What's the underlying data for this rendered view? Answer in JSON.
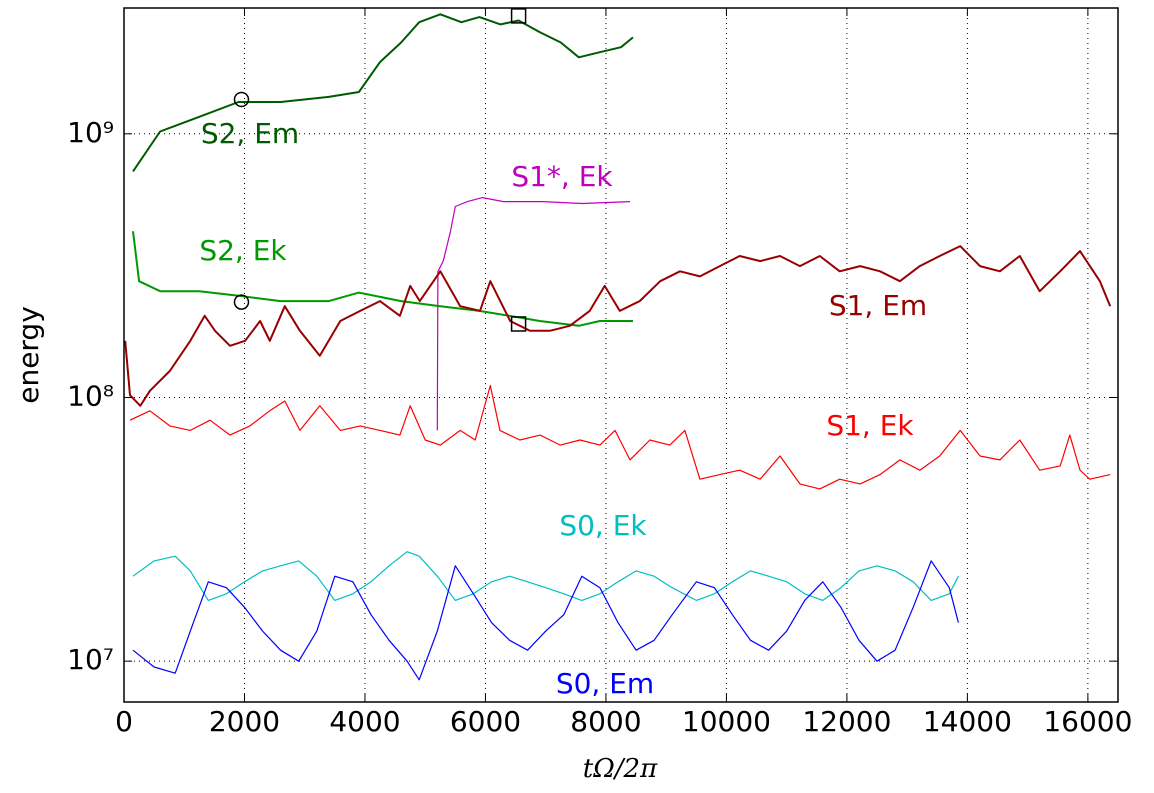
{
  "chart_data": {
    "type": "line",
    "xlabel": "tΩ/2π",
    "ylabel": "energy",
    "log_y": true,
    "grid": true,
    "xlim": [
      0,
      16500
    ],
    "ylim": [
      7000000,
      3000000000
    ],
    "xticks": [
      0,
      2000,
      4000,
      6000,
      8000,
      10000,
      12000,
      14000,
      16000
    ],
    "yticks": [
      {
        "value": 10000000,
        "label": "10⁷"
      },
      {
        "value": 100000000,
        "label": "10⁸"
      },
      {
        "value": 1000000000,
        "label": "10⁹"
      }
    ],
    "series": [
      {
        "name": "S2, Em",
        "color": "#005a00",
        "x": [
          150,
          600,
          1250,
          1900,
          2600,
          3400,
          3900,
          4250,
          4600,
          4900,
          5250,
          5600,
          5900,
          6250,
          6550,
          6900,
          7250,
          7550,
          7900,
          8250,
          8450
        ],
        "values": [
          720000000,
          1020000000,
          1160000000,
          1320000000,
          1320000000,
          1380000000,
          1440000000,
          1870000000,
          2220000000,
          2650000000,
          2840000000,
          2650000000,
          2770000000,
          2600000000,
          2690000000,
          2430000000,
          2220000000,
          1950000000,
          2040000000,
          2130000000,
          2320000000
        ]
      },
      {
        "name": "S1*, Ek",
        "color": "#bf00bf",
        "x": [
          5200,
          5210,
          5300,
          5420,
          5500,
          5700,
          5950,
          6300,
          6950,
          7600,
          8400
        ],
        "values": [
          75000000,
          300000000,
          330000000,
          427000000,
          530000000,
          553000000,
          573000000,
          553000000,
          553000000,
          544000000,
          553000000
        ]
      },
      {
        "name": "S2, Ek",
        "color": "#009900",
        "x": [
          150,
          250,
          600,
          1250,
          1900,
          2600,
          3400,
          3900,
          4600,
          5250,
          5900,
          6400,
          6900,
          7550,
          7900,
          8450
        ],
        "values": [
          427000000,
          276000000,
          253000000,
          253000000,
          243000000,
          232000000,
          232000000,
          250000000,
          232000000,
          222000000,
          213000000,
          204000000,
          195000000,
          187000000,
          195000000,
          195000000
        ]
      },
      {
        "name": "S1, Em",
        "color": "#990000",
        "x": [
          20,
          100,
          270,
          430,
          760,
          1100,
          1340,
          1510,
          1760,
          2010,
          2260,
          2420,
          2670,
          2920,
          3250,
          3590,
          3920,
          4250,
          4580,
          4750,
          4910,
          5250,
          5580,
          5910,
          6080,
          6410,
          6740,
          7070,
          7400,
          7730,
          7980,
          8230,
          8560,
          8900,
          9230,
          9560,
          9890,
          10220,
          10560,
          10890,
          11220,
          11550,
          11880,
          12220,
          12550,
          12880,
          13210,
          13540,
          13880,
          14210,
          14540,
          14870,
          15200,
          15540,
          15870,
          16200,
          16370
        ],
        "values": [
          164000000,
          102000000,
          93000000,
          106000000,
          126000000,
          164000000,
          204000000,
          179000000,
          157000000,
          164000000,
          195000000,
          164000000,
          222000000,
          179000000,
          144000000,
          195000000,
          213000000,
          232000000,
          204000000,
          265000000,
          232000000,
          301000000,
          222000000,
          213000000,
          276000000,
          195000000,
          179000000,
          179000000,
          187000000,
          213000000,
          265000000,
          213000000,
          232000000,
          276000000,
          301000000,
          288000000,
          315000000,
          344000000,
          329000000,
          344000000,
          315000000,
          344000000,
          301000000,
          315000000,
          301000000,
          276000000,
          315000000,
          344000000,
          375000000,
          315000000,
          301000000,
          344000000,
          253000000,
          301000000,
          359000000,
          276000000,
          222000000
        ]
      },
      {
        "name": "S1, Ek",
        "color": "#ff0000",
        "x": [
          100,
          430,
          760,
          1100,
          1430,
          1760,
          2090,
          2420,
          2670,
          2920,
          3250,
          3590,
          3920,
          4250,
          4580,
          4750,
          5000,
          5250,
          5580,
          5830,
          6080,
          6240,
          6570,
          6910,
          7240,
          7570,
          7900,
          8150,
          8400,
          8730,
          9060,
          9310,
          9560,
          9890,
          10220,
          10560,
          10890,
          11220,
          11550,
          11880,
          12220,
          12550,
          12880,
          13210,
          13540,
          13880,
          14210,
          14540,
          14870,
          15200,
          15540,
          15700,
          15870,
          16030,
          16370
        ],
        "values": [
          82000000,
          89000000,
          78000000,
          75000000,
          82000000,
          72000000,
          78000000,
          89000000,
          97000000,
          75000000,
          93000000,
          75000000,
          78000000,
          75000000,
          72000000,
          93000000,
          69000000,
          66000000,
          75000000,
          69000000,
          111000000,
          75000000,
          69000000,
          72000000,
          66000000,
          69000000,
          66000000,
          75000000,
          58000000,
          69000000,
          66000000,
          75000000,
          49000000,
          51000000,
          53000000,
          49000000,
          60000000,
          47000000,
          45000000,
          49000000,
          47000000,
          51000000,
          58000000,
          53000000,
          60000000,
          75000000,
          60000000,
          58000000,
          69000000,
          53000000,
          55000000,
          72000000,
          53000000,
          49000000,
          51000000
        ]
      },
      {
        "name": "S0, Ek",
        "color": "#00bfbf",
        "x": [
          150,
          500,
          850,
          1100,
          1400,
          1700,
          2000,
          2300,
          2600,
          2900,
          3200,
          3500,
          3800,
          4100,
          4400,
          4700,
          4900,
          5200,
          5500,
          5800,
          6100,
          6400,
          6700,
          7000,
          7300,
          7600,
          7900,
          8200,
          8500,
          8800,
          9100,
          9500,
          9800,
          10100,
          10400,
          10700,
          11000,
          11300,
          11600,
          11900,
          12200,
          12500,
          12800,
          13100,
          13400,
          13700,
          13850
        ],
        "values": [
          21000000,
          24000000,
          25000000,
          22000000,
          17000000,
          18000000,
          20000000,
          22000000,
          23000000,
          24000000,
          21000000,
          17000000,
          18000000,
          20000000,
          23000000,
          26000000,
          25000000,
          21000000,
          17000000,
          18000000,
          20000000,
          21000000,
          20000000,
          19000000,
          18000000,
          17000000,
          18000000,
          20000000,
          22000000,
          21000000,
          19000000,
          17000000,
          18000000,
          20000000,
          22000000,
          21000000,
          20000000,
          18000000,
          17000000,
          19000000,
          22000000,
          23000000,
          22000000,
          20000000,
          17000000,
          18000000,
          21000000
        ]
      },
      {
        "name": "S0, Em",
        "color": "#0000ff",
        "x": [
          150,
          500,
          850,
          1100,
          1400,
          1700,
          2000,
          2300,
          2600,
          2900,
          3200,
          3500,
          3800,
          4100,
          4400,
          4700,
          4900,
          5200,
          5500,
          5800,
          6100,
          6400,
          6700,
          7000,
          7300,
          7600,
          7900,
          8200,
          8500,
          8800,
          9100,
          9500,
          9800,
          10100,
          10400,
          10700,
          11000,
          11300,
          11600,
          11900,
          12200,
          12500,
          12800,
          13100,
          13400,
          13700,
          13850
        ],
        "values": [
          11000000,
          9500000,
          9000000,
          13000000,
          20000000,
          19000000,
          16000000,
          13000000,
          11000000,
          10000000,
          13000000,
          21000000,
          20000000,
          15000000,
          12000000,
          10000000,
          8500000,
          13000000,
          23000000,
          18000000,
          14000000,
          12000000,
          11000000,
          13000000,
          15000000,
          21000000,
          19000000,
          14000000,
          11000000,
          12000000,
          15000000,
          20000000,
          19000000,
          15000000,
          12000000,
          11000000,
          13000000,
          17000000,
          20000000,
          16000000,
          12000000,
          10000000,
          11000000,
          16000000,
          24000000,
          19000000,
          14000000
        ]
      }
    ],
    "markers": [
      {
        "shape": "circle",
        "x": 1950,
        "y": 1350000000
      },
      {
        "shape": "circle",
        "x": 1950,
        "y": 230000000
      },
      {
        "shape": "square",
        "x": 6550,
        "y": 2800000000
      },
      {
        "shape": "square",
        "x": 6550,
        "y": 190000000
      }
    ]
  }
}
